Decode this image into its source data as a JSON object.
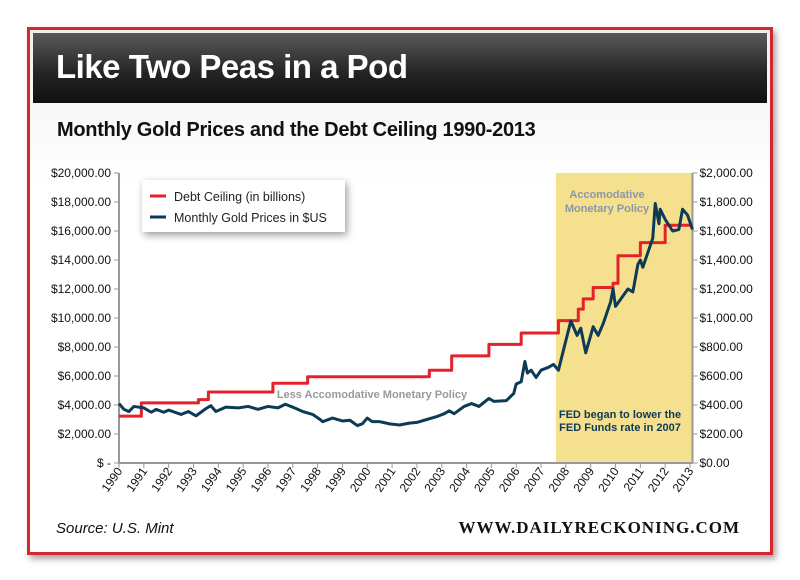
{
  "title": "Like Two Peas in a Pod",
  "source": "Source: U.S. Mint",
  "site": "WWW.DAILYRECKONING.COM",
  "colors": {
    "debt": "#e3222b",
    "gold": "#0d3a55",
    "shade": "#f5e08f",
    "brand": "#d9262c"
  },
  "chart_data": {
    "type": "line",
    "title": "Monthly Gold Prices and the Debt Ceiling 1990-2013",
    "x_ticks": [
      "1990",
      "1991",
      "1992",
      "1993",
      "1994",
      "1995",
      "1996",
      "1997",
      "1998",
      "1999",
      "2000",
      "2001",
      "2002",
      "2003",
      "2004",
      "2005",
      "2006",
      "2007",
      "2008",
      "2009",
      "2010",
      "2011",
      "2012",
      "2013"
    ],
    "xlim": [
      1990,
      2013.1
    ],
    "y_left_ticks": [
      "$ -",
      "$2,000.00",
      "$4,000.00",
      "$6,000.00",
      "$8,000.00",
      "$10,000.00",
      "$12,000.00",
      "$14,000.00",
      "$16,000.00",
      "$18,000.00",
      "$20,000.00"
    ],
    "y_right_ticks": [
      "$0.00",
      "$200.00",
      "$400.00",
      "$600.00",
      "$800.00",
      "$1,000.00",
      "$1,200.00",
      "$1,400.00",
      "$1,600.00",
      "$1,800.00",
      "$2,000.00"
    ],
    "ylim_left": [
      0,
      20000
    ],
    "ylim_right": [
      0,
      2000
    ],
    "legend": [
      "Debt Ceiling (in billions)",
      "Monthly Gold Prices in $US"
    ],
    "legend_position": "top-left",
    "annotations": {
      "less": "Less Accomodative Monetary Policy",
      "accom1": "Accomodative",
      "accom2": "Monetary Policy",
      "fed1": "FED began to lower the",
      "fed2": "FED Funds rate in 2007"
    },
    "shaded_region": [
      2007.6,
      2013.1
    ],
    "series": [
      {
        "name": "Debt Ceiling (in billions)",
        "axis": "left",
        "step": true,
        "points": [
          [
            1990,
            3230
          ],
          [
            1990.9,
            4145
          ],
          [
            1993.2,
            4370
          ],
          [
            1993.6,
            4900
          ],
          [
            1996.2,
            5500
          ],
          [
            1997.6,
            5950
          ],
          [
            2002.5,
            6400
          ],
          [
            2003.4,
            7384
          ],
          [
            2004.9,
            8184
          ],
          [
            2006.2,
            8965
          ],
          [
            2007.7,
            9815
          ],
          [
            2008.5,
            10615
          ],
          [
            2008.7,
            11315
          ],
          [
            2009.1,
            12104
          ],
          [
            2009.9,
            12394
          ],
          [
            2010.1,
            14294
          ],
          [
            2011.0,
            15194
          ],
          [
            2012.0,
            16394
          ],
          [
            2013.1,
            16394
          ]
        ]
      },
      {
        "name": "Monthly Gold Prices in $US",
        "axis": "right",
        "points": [
          [
            1990,
            410
          ],
          [
            1990.2,
            370
          ],
          [
            1990.4,
            355
          ],
          [
            1990.6,
            390
          ],
          [
            1991,
            380
          ],
          [
            1991.3,
            350
          ],
          [
            1991.5,
            370
          ],
          [
            1991.8,
            350
          ],
          [
            1992,
            365
          ],
          [
            1992.5,
            335
          ],
          [
            1992.8,
            355
          ],
          [
            1993.1,
            325
          ],
          [
            1993.5,
            375
          ],
          [
            1993.7,
            395
          ],
          [
            1993.9,
            355
          ],
          [
            1994.3,
            385
          ],
          [
            1994.8,
            380
          ],
          [
            1995.2,
            390
          ],
          [
            1995.6,
            370
          ],
          [
            1996,
            390
          ],
          [
            1996.4,
            380
          ],
          [
            1996.7,
            405
          ],
          [
            1997,
            385
          ],
          [
            1997.4,
            355
          ],
          [
            1997.8,
            335
          ],
          [
            1998.1,
            300
          ],
          [
            1998.2,
            285
          ],
          [
            1998.6,
            310
          ],
          [
            1999,
            290
          ],
          [
            1999.3,
            295
          ],
          [
            1999.6,
            258
          ],
          [
            1999.8,
            270
          ],
          [
            2000,
            310
          ],
          [
            2000.2,
            285
          ],
          [
            2000.5,
            285
          ],
          [
            2000.9,
            270
          ],
          [
            2001.3,
            262
          ],
          [
            2001.7,
            275
          ],
          [
            2002,
            280
          ],
          [
            2002.4,
            300
          ],
          [
            2002.8,
            320
          ],
          [
            2003.1,
            340
          ],
          [
            2003.3,
            360
          ],
          [
            2003.5,
            340
          ],
          [
            2003.9,
            390
          ],
          [
            2004.2,
            410
          ],
          [
            2004.5,
            390
          ],
          [
            2004.9,
            445
          ],
          [
            2005.1,
            425
          ],
          [
            2005.6,
            430
          ],
          [
            2005.9,
            480
          ],
          [
            2006,
            545
          ],
          [
            2006.2,
            560
          ],
          [
            2006.35,
            700
          ],
          [
            2006.45,
            620
          ],
          [
            2006.6,
            640
          ],
          [
            2006.8,
            590
          ],
          [
            2007,
            640
          ],
          [
            2007.3,
            660
          ],
          [
            2007.5,
            680
          ],
          [
            2007.7,
            640
          ],
          [
            2008.2,
            980
          ],
          [
            2008.45,
            880
          ],
          [
            2008.6,
            930
          ],
          [
            2008.8,
            760
          ],
          [
            2009.1,
            940
          ],
          [
            2009.3,
            880
          ],
          [
            2009.5,
            960
          ],
          [
            2009.8,
            1110
          ],
          [
            2009.9,
            1200
          ],
          [
            2010.0,
            1080
          ],
          [
            2010.5,
            1200
          ],
          [
            2010.7,
            1180
          ],
          [
            2010.9,
            1370
          ],
          [
            2011.0,
            1400
          ],
          [
            2011.1,
            1350
          ],
          [
            2011.5,
            1550
          ],
          [
            2011.6,
            1790
          ],
          [
            2011.75,
            1650
          ],
          [
            2011.8,
            1750
          ],
          [
            2012,
            1680
          ],
          [
            2012.3,
            1600
          ],
          [
            2012.55,
            1610
          ],
          [
            2012.7,
            1750
          ],
          [
            2012.9,
            1710
          ],
          [
            2013.1,
            1610
          ]
        ]
      }
    ]
  }
}
